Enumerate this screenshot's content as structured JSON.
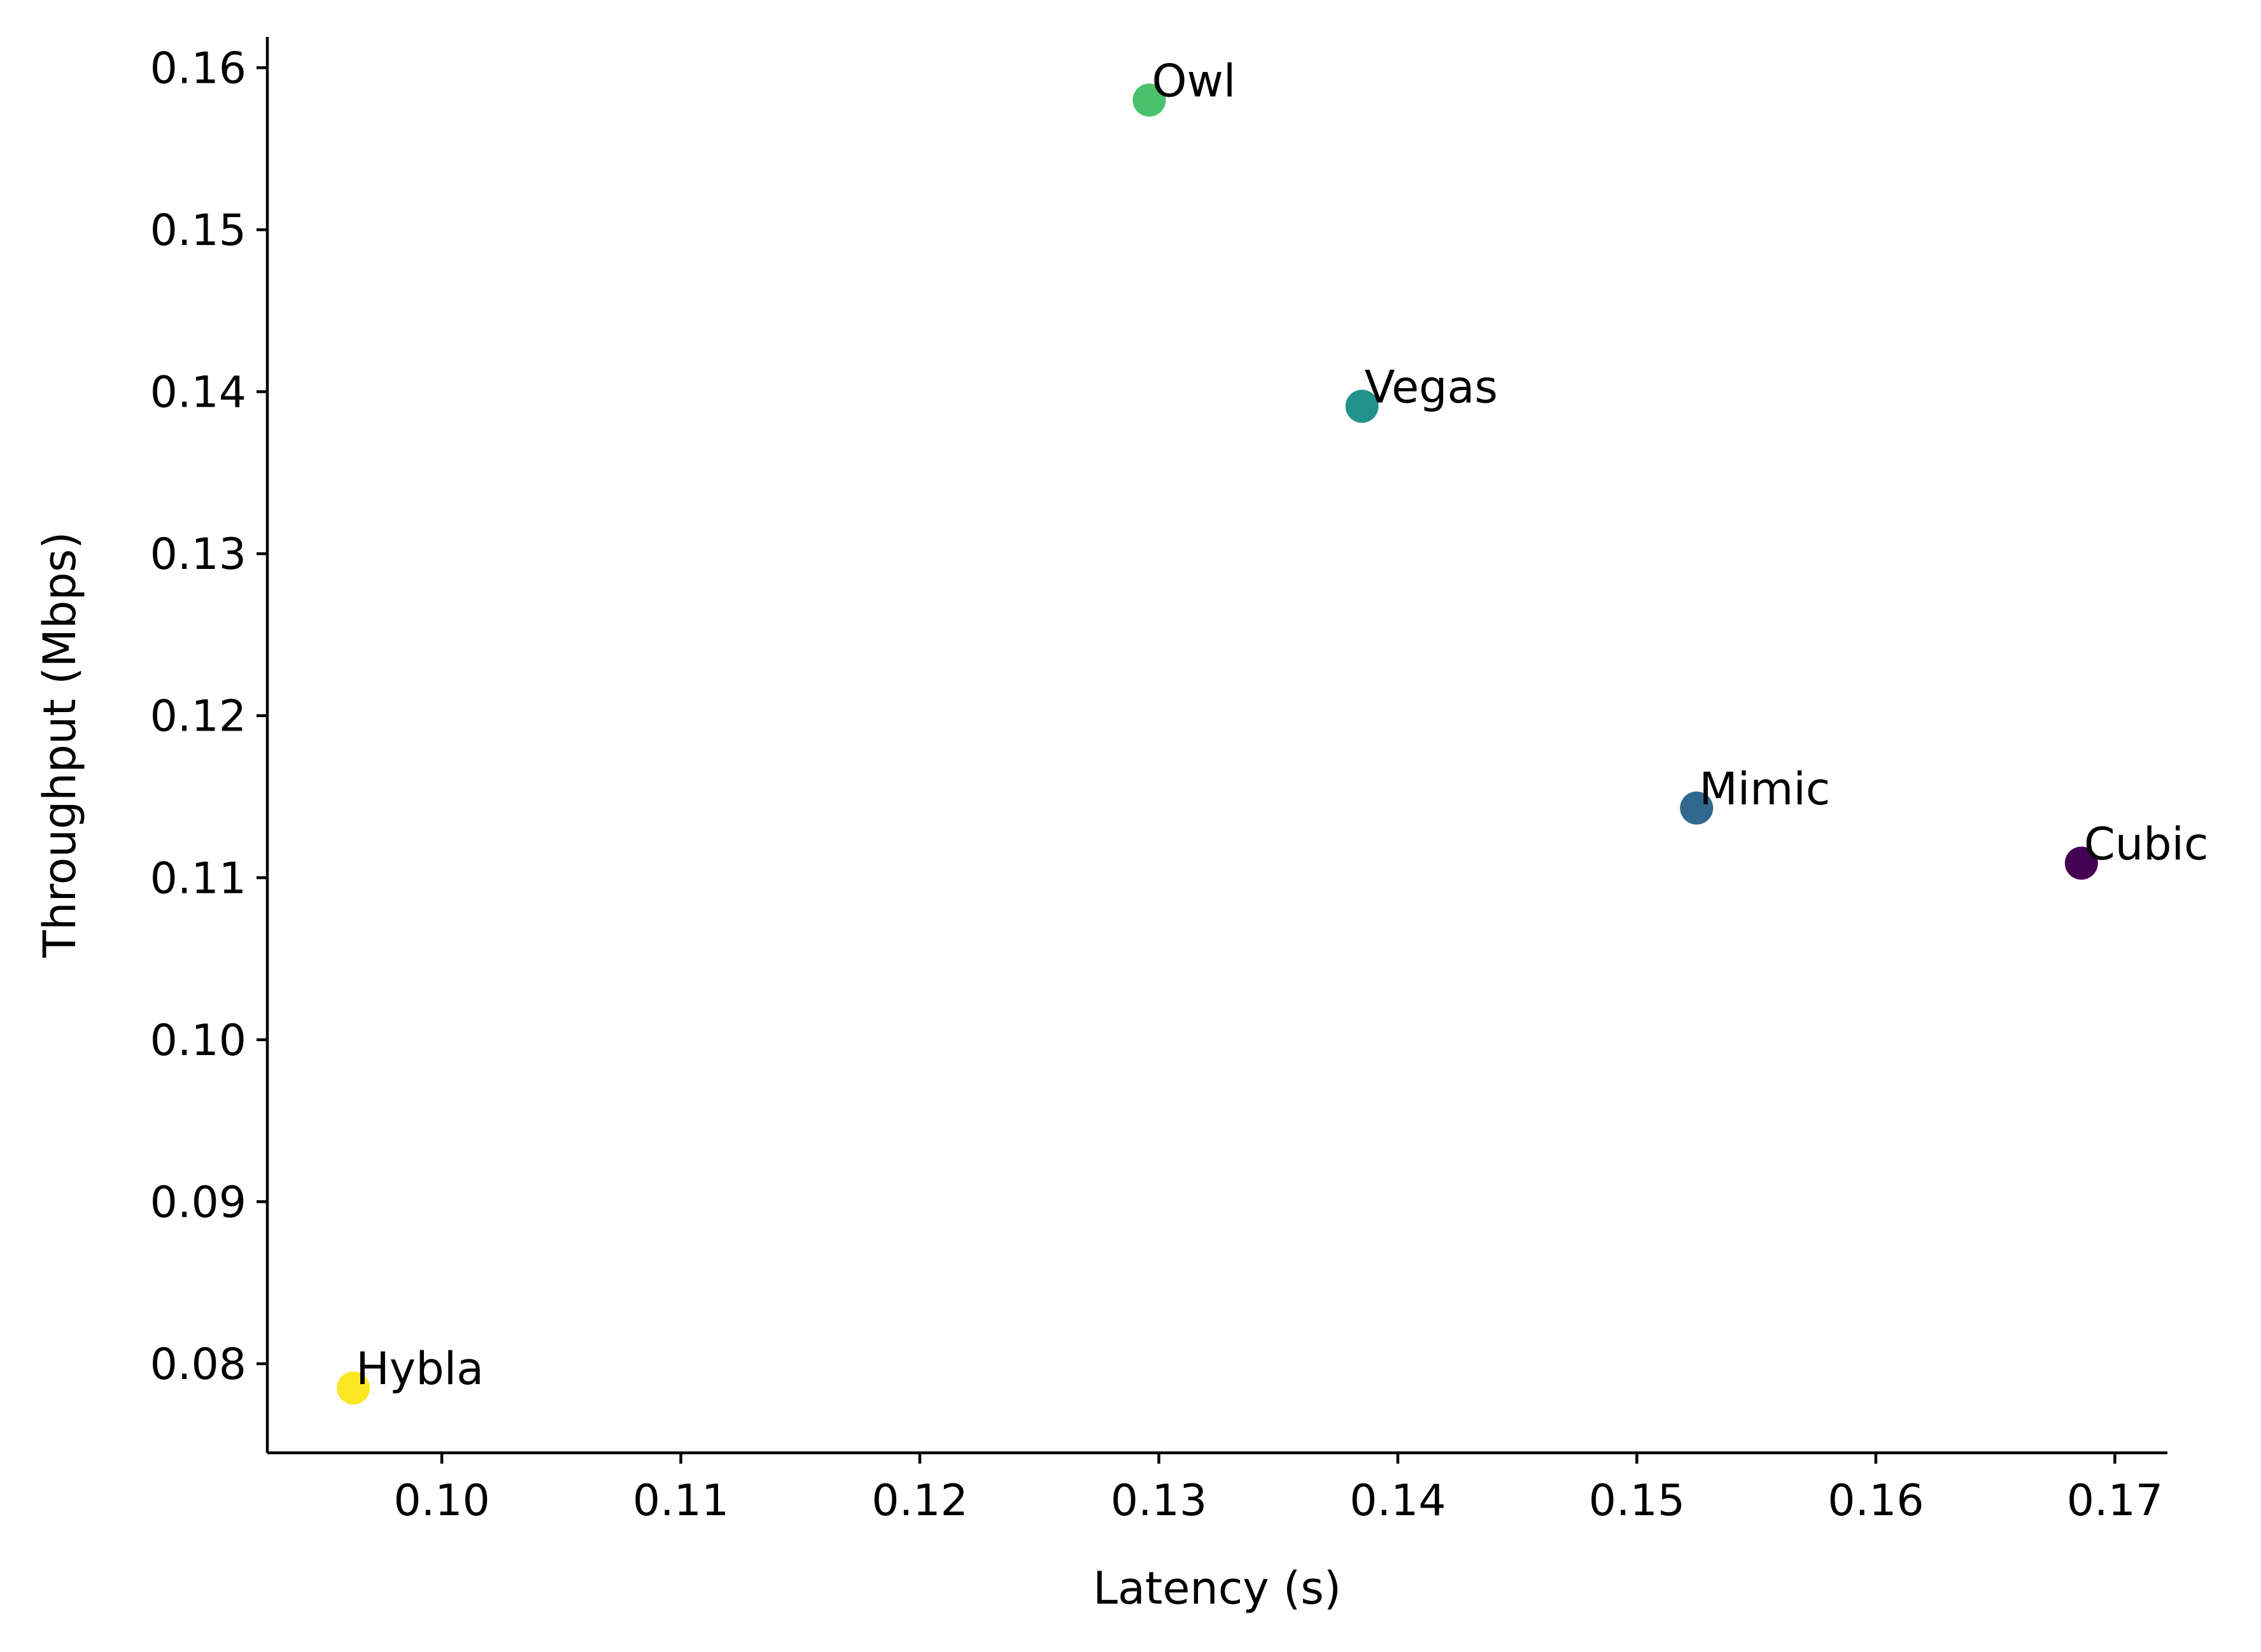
{
  "chart_data": {
    "type": "scatter",
    "title": "",
    "xlabel": "Latency (s)",
    "ylabel": "Throughput (Mbps)",
    "xlim": [
      0.0927,
      0.1722
    ],
    "ylim": [
      0.0745,
      0.1619
    ],
    "xticks": [
      "0.10",
      "0.11",
      "0.12",
      "0.13",
      "0.14",
      "0.15",
      "0.16",
      "0.17"
    ],
    "yticks": [
      "0.08",
      "0.09",
      "0.10",
      "0.11",
      "0.12",
      "0.13",
      "0.14",
      "0.15",
      "0.16"
    ],
    "grid": false,
    "spines": [
      "left",
      "bottom"
    ],
    "points": [
      {
        "label": "Owl",
        "x": 0.1296,
        "y": 0.158,
        "color": "#4ac16d"
      },
      {
        "label": "Vegas",
        "x": 0.1385,
        "y": 0.1391,
        "color": "#21918c"
      },
      {
        "label": "Mimic",
        "x": 0.1525,
        "y": 0.1143,
        "color": "#31688e"
      },
      {
        "label": "Cubic",
        "x": 0.1686,
        "y": 0.1109,
        "color": "#440154"
      },
      {
        "label": "Hybla",
        "x": 0.0963,
        "y": 0.0785,
        "color": "#fde725"
      }
    ]
  }
}
